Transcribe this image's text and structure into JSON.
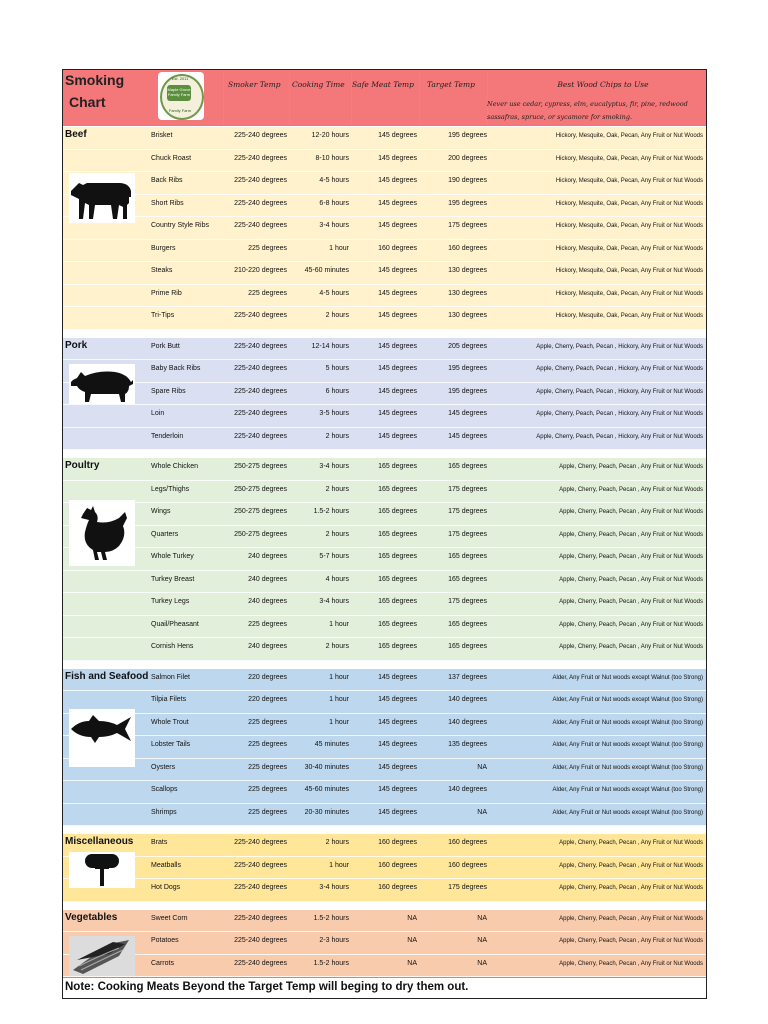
{
  "header": {
    "title_line1": "Smoking",
    "title_line2": "Chart",
    "logo": {
      "top": "Est. 2011",
      "mid": "Maple Grove Family Farm",
      "bottom": "Family Farm"
    },
    "columns": {
      "smoker_temp": "Smoker Temp",
      "cooking_time": "Cooking Time",
      "safe_meat_temp": "Safe Meat Temp",
      "target_temp": "Target Temp",
      "wood_chips": "Best Wood Chips to Use"
    },
    "wood_note": "Never use cedar, cypress, elm, eucalyptus, fir, pine, redwood sassafras, spruce, or sycamore for smoking."
  },
  "sections": [
    {
      "title": "Beef",
      "color": "#fff2cc",
      "icon": "cow-icon",
      "rows": [
        {
          "name": "Brisket",
          "smoker": "225-240 degrees",
          "time": "12-20 hours",
          "safe": "145 degrees",
          "target": "195 degrees",
          "wood": "Hickory, Mesquite, Oak, Pecan, Any Fruit or Nut Woods"
        },
        {
          "name": "Chuck Roast",
          "smoker": "225-240 degrees",
          "time": "8-10 hours",
          "safe": "145 degrees",
          "target": "200 degrees",
          "wood": "Hickory, Mesquite, Oak, Pecan, Any Fruit or Nut Woods"
        },
        {
          "name": "Back Ribs",
          "smoker": "225-240 degrees",
          "time": "4-5 hours",
          "safe": "145 degrees",
          "target": "190 degrees",
          "wood": "Hickory, Mesquite, Oak, Pecan, Any Fruit or Nut Woods"
        },
        {
          "name": "Short Ribs",
          "smoker": "225-240 degrees",
          "time": "6-8 hours",
          "safe": "145 degrees",
          "target": "195 degrees",
          "wood": "Hickory, Mesquite, Oak, Pecan, Any Fruit or Nut Woods"
        },
        {
          "name": "Country Style Ribs",
          "smoker": "225-240 degrees",
          "time": "3-4 hours",
          "safe": "145 degrees",
          "target": "175 degrees",
          "wood": "Hickory, Mesquite, Oak, Pecan, Any Fruit or Nut Woods"
        },
        {
          "name": "Burgers",
          "smoker": "225 degrees",
          "time": "1 hour",
          "safe": "160 degrees",
          "target": "160 degrees",
          "wood": "Hickory, Mesquite, Oak, Pecan, Any Fruit or Nut Woods"
        },
        {
          "name": "Steaks",
          "smoker": "210-220 degrees",
          "time": "45-60 minutes",
          "safe": "145 degrees",
          "target": "130 degrees",
          "wood": "Hickory, Mesquite, Oak, Pecan, Any Fruit or Nut Woods"
        },
        {
          "name": "Prime Rib",
          "smoker": "225 degrees",
          "time": "4-5 hours",
          "safe": "145 degrees",
          "target": "130 degrees",
          "wood": "Hickory, Mesquite, Oak, Pecan, Any Fruit or Nut Woods"
        },
        {
          "name": "Tri-Tips",
          "smoker": "225-240 degrees",
          "time": "2 hours",
          "safe": "145 degrees",
          "target": "130 degrees",
          "wood": "Hickory, Mesquite, Oak, Pecan, Any Fruit or Nut Woods"
        }
      ]
    },
    {
      "title": "Pork",
      "color": "#dadff2",
      "icon": "pig-icon",
      "rows": [
        {
          "name": "Pork Butt",
          "smoker": "225-240 degrees",
          "time": "12-14 hours",
          "safe": "145 degrees",
          "target": "205 degrees",
          "wood": "Apple, Cherry, Peach, Pecan , Hickory, Any Fruit or Nut Woods"
        },
        {
          "name": "Baby Back Ribs",
          "smoker": "225-240 degrees",
          "time": "5 hours",
          "safe": "145 degrees",
          "target": "195 degrees",
          "wood": "Apple, Cherry, Peach, Pecan , Hickory, Any Fruit or Nut Woods"
        },
        {
          "name": "Spare Ribs",
          "smoker": "225-240 degrees",
          "time": "6 hours",
          "safe": "145 degrees",
          "target": "195 degrees",
          "wood": "Apple, Cherry, Peach, Pecan , Hickory, Any Fruit or Nut Woods"
        },
        {
          "name": "Loin",
          "smoker": "225-240 degrees",
          "time": "3-5 hours",
          "safe": "145 degrees",
          "target": "145 degrees",
          "wood": "Apple, Cherry, Peach, Pecan , Hickory, Any Fruit or Nut Woods"
        },
        {
          "name": "Tenderloin",
          "smoker": "225-240 degrees",
          "time": "2 hours",
          "safe": "145 degrees",
          "target": "145 degrees",
          "wood": "Apple, Cherry, Peach, Pecan , Hickory, Any Fruit or Nut Woods"
        }
      ]
    },
    {
      "title": "Poultry",
      "color": "#e2efda",
      "icon": "chicken-icon",
      "rows": [
        {
          "name": "Whole Chicken",
          "smoker": "250-275 degrees",
          "time": "3-4 hours",
          "safe": "165 degrees",
          "target": "165 degrees",
          "wood": "Apple, Cherry, Peach, Pecan , Any Fruit or Nut Woods"
        },
        {
          "name": "Legs/Thighs",
          "smoker": "250-275 degrees",
          "time": "2 hours",
          "safe": "165 degrees",
          "target": "175 degrees",
          "wood": "Apple, Cherry, Peach, Pecan , Any Fruit or Nut Woods"
        },
        {
          "name": "Wings",
          "smoker": "250-275 degrees",
          "time": "1.5-2 hours",
          "safe": "165 degrees",
          "target": "175 degrees",
          "wood": "Apple, Cherry, Peach, Pecan , Any Fruit or Nut Woods"
        },
        {
          "name": "Quarters",
          "smoker": "250-275 degrees",
          "time": "2 hours",
          "safe": "165 degrees",
          "target": "175 degrees",
          "wood": "Apple, Cherry, Peach, Pecan , Any Fruit or Nut Woods"
        },
        {
          "name": "Whole Turkey",
          "smoker": "240 degrees",
          "time": "5-7 hours",
          "safe": "165 degrees",
          "target": "165 degrees",
          "wood": "Apple, Cherry, Peach, Pecan , Any Fruit or Nut Woods"
        },
        {
          "name": "Turkey Breast",
          "smoker": "240 degrees",
          "time": "4 hours",
          "safe": "165 degrees",
          "target": "165 degrees",
          "wood": "Apple, Cherry, Peach, Pecan , Any Fruit or Nut Woods"
        },
        {
          "name": "Turkey Legs",
          "smoker": "240 degrees",
          "time": "3-4 hours",
          "safe": "165 degrees",
          "target": "175 degrees",
          "wood": "Apple, Cherry, Peach, Pecan , Any Fruit or Nut Woods"
        },
        {
          "name": "Quail/Pheasant",
          "smoker": "225 degrees",
          "time": "1 hour",
          "safe": "165 degrees",
          "target": "165 degrees",
          "wood": "Apple, Cherry, Peach, Pecan , Any Fruit or Nut Woods"
        },
        {
          "name": "Cornish Hens",
          "smoker": "240 degrees",
          "time": "2 hours",
          "safe": "165 degrees",
          "target": "165 degrees",
          "wood": "Apple, Cherry, Peach, Pecan , Any Fruit or Nut Woods"
        }
      ]
    },
    {
      "title": "Fish and Seafood",
      "color": "#bdd7ee",
      "icon": "fish-icon",
      "rows": [
        {
          "name": "Salmon Filet",
          "smoker": "220 degrees",
          "time": "1 hour",
          "safe": "145 degrees",
          "target": "137 degrees",
          "wood": "Alder, Any Fruit or Nut woods except Walnut (too Strong)"
        },
        {
          "name": "Tilpia Filets",
          "smoker": "220 degrees",
          "time": "1 hour",
          "safe": "145 degrees",
          "target": "140 degrees",
          "wood": "Alder, Any Fruit or Nut woods except Walnut (too Strong)"
        },
        {
          "name": "Whole Trout",
          "smoker": "225 degrees",
          "time": "1 hour",
          "safe": "145 degrees",
          "target": "140 degrees",
          "wood": "Alder, Any Fruit or Nut woods except Walnut (too Strong)"
        },
        {
          "name": "Lobster Tails",
          "smoker": "225 degrees",
          "time": "45 minutes",
          "safe": "145 degrees",
          "target": "135 degrees",
          "wood": "Alder, Any Fruit or Nut woods except Walnut (too Strong)"
        },
        {
          "name": "Oysters",
          "smoker": "225 degrees",
          "time": "30-40 minutes",
          "safe": "145 degrees",
          "target": "NA",
          "wood": "Alder, Any Fruit or Nut woods except Walnut (too Strong)"
        },
        {
          "name": "Scallops",
          "smoker": "225 degrees",
          "time": "45-60 minutes",
          "safe": "145 degrees",
          "target": "140 degrees",
          "wood": "Alder, Any Fruit or Nut woods except Walnut (too Strong)"
        },
        {
          "name": "Shrimps",
          "smoker": "225 degrees",
          "time": "20-30 minutes",
          "safe": "145 degrees",
          "target": "NA",
          "wood": "Alder, Any Fruit or Nut woods except Walnut (too Strong)"
        }
      ]
    },
    {
      "title": "Miscellaneous",
      "color": "#ffe699",
      "icon": "sausage-fork-icon",
      "rows": [
        {
          "name": "Brats",
          "smoker": "225-240 degrees",
          "time": "2 hours",
          "safe": "160 degrees",
          "target": "160 degrees",
          "wood": "Apple, Cherry, Peach, Pecan , Any Fruit or Nut Woods"
        },
        {
          "name": "Meatballs",
          "smoker": "225-240 degrees",
          "time": "1 hour",
          "safe": "160 degrees",
          "target": "160 degrees",
          "wood": "Apple, Cherry, Peach, Pecan , Any Fruit or Nut Woods"
        },
        {
          "name": "Hot Dogs",
          "smoker": "225-240 degrees",
          "time": "3-4 hours",
          "safe": "160 degrees",
          "target": "175 degrees",
          "wood": "Apple, Cherry, Peach, Pecan , Any Fruit or Nut Woods"
        }
      ]
    },
    {
      "title": "Vegetables",
      "color": "#f8cbad",
      "icon": "corn-icon",
      "rows": [
        {
          "name": "Sweet Corn",
          "smoker": "225-240 degrees",
          "time": "1.5-2 hours",
          "safe": "NA",
          "target": "NA",
          "wood": "Apple, Cherry, Peach, Pecan , Any Fruit or Nut Woods"
        },
        {
          "name": "Potatoes",
          "smoker": "225-240 degrees",
          "time": "2-3 hours",
          "safe": "NA",
          "target": "NA",
          "wood": "Apple, Cherry, Peach, Pecan , Any Fruit or Nut Woods"
        },
        {
          "name": "Carrots",
          "smoker": "225-240 degrees",
          "time": "1.5-2 hours",
          "safe": "NA",
          "target": "NA",
          "wood": "Apple, Cherry, Peach, Pecan , Any Fruit or Nut Woods"
        }
      ]
    }
  ],
  "footer": "Note: Cooking Meats Beyond the Target Temp will beging to dry them out."
}
